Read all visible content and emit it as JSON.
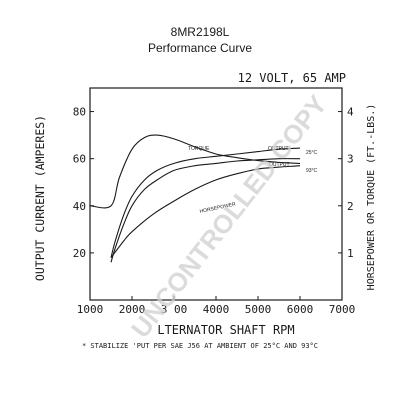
{
  "header": {
    "model": "8MR2198L",
    "title": "Performance Curve"
  },
  "chart_data": {
    "type": "line",
    "rating_label": "12 VOLT, 65 AMP",
    "xlabel": "ALTERNATOR SHAFT RPM",
    "xlabel_visible": "LTERNATOR SHAFT RPM",
    "ylabel_left": "OUTPUT CURRENT (AMPERES)",
    "ylabel_right": "HORSEPOWER OR TORQUE (FT.-LBS.)",
    "footnote": "* STABILIZE OUTPUT PER SAE J56 AT AMBIENT OF 25°C AND 93°C",
    "footnote_visible": "* STABILIZE  'PUT PER SAE J56 AT AMBIENT OF 25°C AND 93°C",
    "xlim": [
      1000,
      7000
    ],
    "ylim_left": [
      0,
      90
    ],
    "ylim_right": [
      0,
      4.5
    ],
    "x_ticks": [
      {
        "value": 1000,
        "label": "1000"
      },
      {
        "value": 2000,
        "label": "2000"
      },
      {
        "value": 3000,
        "label": "3 00"
      },
      {
        "value": 4000,
        "label": "4000"
      },
      {
        "value": 5000,
        "label": "5000"
      },
      {
        "value": 6000,
        "label": "6000"
      },
      {
        "value": 7000,
        "label": "7000"
      }
    ],
    "y_left_ticks": [
      20,
      40,
      60,
      80
    ],
    "y_right_ticks": [
      1,
      2,
      3,
      4
    ],
    "grid": false,
    "series": [
      {
        "name": "OUTPUT 25°C",
        "label": "OUTPUT",
        "temp_label": "25°C",
        "axis": "left",
        "x": [
          1500,
          1600,
          1800,
          2000,
          2300,
          2600,
          3000,
          3500,
          4000,
          4500,
          5000,
          5500,
          6000
        ],
        "y": [
          18,
          25,
          36,
          44,
          51,
          55,
          58,
          60,
          61,
          62,
          63,
          64,
          64.5
        ]
      },
      {
        "name": "OUTPUT 93°C",
        "label": "OUTPUT",
        "temp_label": "93°C",
        "axis": "left",
        "x": [
          1500,
          1600,
          1800,
          2000,
          2300,
          2600,
          3000,
          3500,
          4000,
          4500,
          5000,
          5500,
          6000
        ],
        "y": [
          16,
          22,
          32,
          40,
          47,
          51,
          55,
          57,
          58,
          59,
          59.5,
          60,
          60
        ]
      },
      {
        "name": "TORQUE",
        "label": "TORQUE",
        "axis": "right",
        "x": [
          1000,
          1500,
          1700,
          2000,
          2300,
          2600,
          3000,
          3500,
          4000,
          4500,
          5000,
          5500,
          6000
        ],
        "y": [
          2.0,
          2.0,
          2.6,
          3.2,
          3.45,
          3.5,
          3.42,
          3.25,
          3.1,
          3.02,
          2.96,
          2.92,
          2.9
        ]
      },
      {
        "name": "HORSEPOWER",
        "label": "HORSEPOWER",
        "axis": "right",
        "x": [
          1500,
          1800,
          2000,
          2500,
          3000,
          3500,
          4000,
          4500,
          5000,
          5500,
          6000
        ],
        "y": [
          0.9,
          1.25,
          1.45,
          1.82,
          2.1,
          2.35,
          2.55,
          2.68,
          2.78,
          2.82,
          2.85
        ]
      }
    ]
  },
  "watermark": "UNCONTROLLED COPY"
}
